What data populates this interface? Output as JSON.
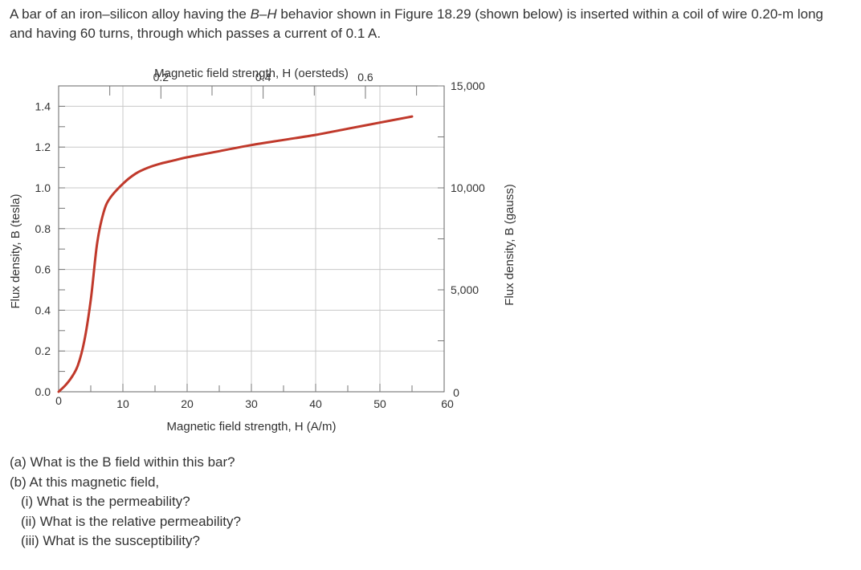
{
  "problem": {
    "part1": "A bar of an iron–silicon alloy having the ",
    "bh_label": "B–H",
    "part2": " behavior shown in Figure 18.29 (shown below) is inserted within a coil of wire 0.20-m long and having 60 turns, through which passes a current of 0.1 A."
  },
  "chart_data": {
    "type": "line",
    "series": [
      {
        "color": "#c0392b",
        "points": [
          [
            0,
            0
          ],
          [
            1,
            0.03
          ],
          [
            2,
            0.07
          ],
          [
            3,
            0.13
          ],
          [
            4,
            0.25
          ],
          [
            5,
            0.45
          ],
          [
            6,
            0.73
          ],
          [
            7,
            0.88
          ],
          [
            8,
            0.95
          ],
          [
            10,
            1.02
          ],
          [
            12,
            1.07
          ],
          [
            14,
            1.1
          ],
          [
            16,
            1.12
          ],
          [
            18,
            1.135
          ],
          [
            20,
            1.15
          ],
          [
            25,
            1.18
          ],
          [
            30,
            1.21
          ],
          [
            35,
            1.235
          ],
          [
            40,
            1.26
          ],
          [
            45,
            1.29
          ],
          [
            50,
            1.32
          ],
          [
            55,
            1.35
          ]
        ]
      }
    ],
    "xlabel": "Magnetic field strength, H (A/m)",
    "ylabel": "Flux density, B (tesla)",
    "xlim": [
      0,
      60
    ],
    "ylim": [
      0,
      1.5
    ],
    "xticks": [
      "0",
      "10",
      "20",
      "30",
      "40",
      "50",
      "60"
    ],
    "yticks": [
      "0.0",
      "0.2",
      "0.4",
      "0.6",
      "0.8",
      "1.0",
      "1.2",
      "1.4"
    ],
    "top_axis_label": "Magnetic field strength, H (oersteds)",
    "top_ticks": [
      "0.2",
      "0.4",
      "0.6"
    ],
    "right_axis_label": "Flux density, B (gauss)",
    "right_ticks": [
      "5,000",
      "10,000",
      "15,000"
    ],
    "right_zero": "0",
    "grid": true
  },
  "questions": {
    "a": "(a) What is the B field within this bar?",
    "b": "(b) At this magnetic field,",
    "i": "(i) What is the permeability?",
    "ii": "(ii) What is the relative permeability?",
    "iii": "(iii) What is the susceptibility?"
  }
}
